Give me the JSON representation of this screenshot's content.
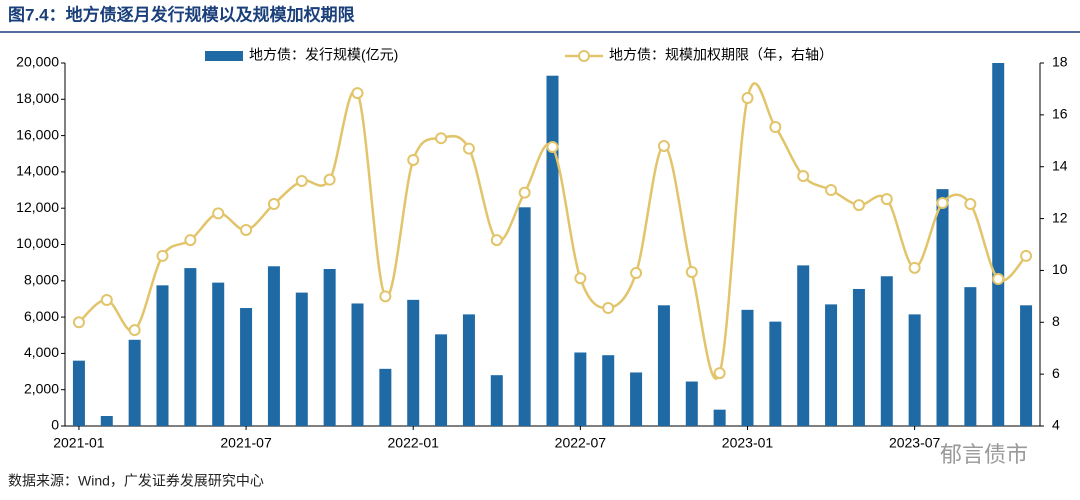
{
  "chart_data": {
    "type": "bar-line",
    "title": "图7.4：地方债逐月发行规模以及规模加权期限",
    "source": "数据来源：Wind，广发证券发展研究中心",
    "watermark": "郁言债市",
    "categories": [
      "2021-01",
      null,
      null,
      null,
      null,
      null,
      "2021-07",
      null,
      null,
      null,
      null,
      null,
      "2022-01",
      null,
      null,
      null,
      null,
      null,
      "2022-07",
      null,
      null,
      null,
      null,
      null,
      "2023-01",
      null,
      null,
      null,
      null,
      null,
      "2023-07",
      null,
      null,
      null,
      null
    ],
    "series": [
      {
        "name": "地方债：发行规模(亿元)",
        "color": "#1f6aa5",
        "type": "bar",
        "axis": "y",
        "values": [
          3600,
          550,
          4750,
          7750,
          8700,
          7900,
          6500,
          8800,
          7350,
          8650,
          6750,
          3150,
          6950,
          5050,
          6150,
          2800,
          12050,
          19300,
          4050,
          3900,
          2950,
          6650,
          2450,
          900,
          6400,
          5750,
          8850,
          6700,
          7550,
          8250,
          6150,
          13050,
          7650,
          20000,
          6650
        ]
      },
      {
        "name": "地方债：规模加权期限（年，右轴）",
        "color": "#e2c46a",
        "type": "line",
        "axis": "y2",
        "values": [
          8.0,
          8.86,
          7.7,
          10.56,
          11.17,
          12.2,
          11.56,
          12.56,
          13.45,
          13.5,
          16.84,
          9.0,
          14.26,
          15.1,
          14.7,
          11.17,
          13.0,
          14.76,
          9.7,
          8.55,
          9.9,
          14.8,
          9.94,
          6.04,
          16.65,
          15.53,
          13.64,
          13.1,
          12.52,
          12.75,
          10.1,
          12.6,
          12.56,
          9.67,
          10.56
        ]
      }
    ],
    "ylim": [
      0,
      20000
    ],
    "yticks": [
      0,
      {
        "value": 2000,
        "label": "2,000"
      },
      {
        "value": 4000,
        "label": "4,000"
      },
      {
        "value": 6000,
        "label": "6,000"
      },
      {
        "value": 8000,
        "label": "8,000"
      },
      {
        "value": 10000,
        "label": "10,000"
      },
      {
        "value": 12000,
        "label": "12,000"
      },
      {
        "value": 14000,
        "label": "14,000"
      },
      {
        "value": 16000,
        "label": "16,000"
      },
      {
        "value": 18000,
        "label": "18,000"
      },
      {
        "value": 20000,
        "label": "20,000"
      }
    ],
    "y2lim": [
      4,
      18
    ],
    "y2ticks": [
      4,
      6,
      8,
      10,
      12,
      14,
      16,
      18
    ],
    "legend": "top"
  }
}
